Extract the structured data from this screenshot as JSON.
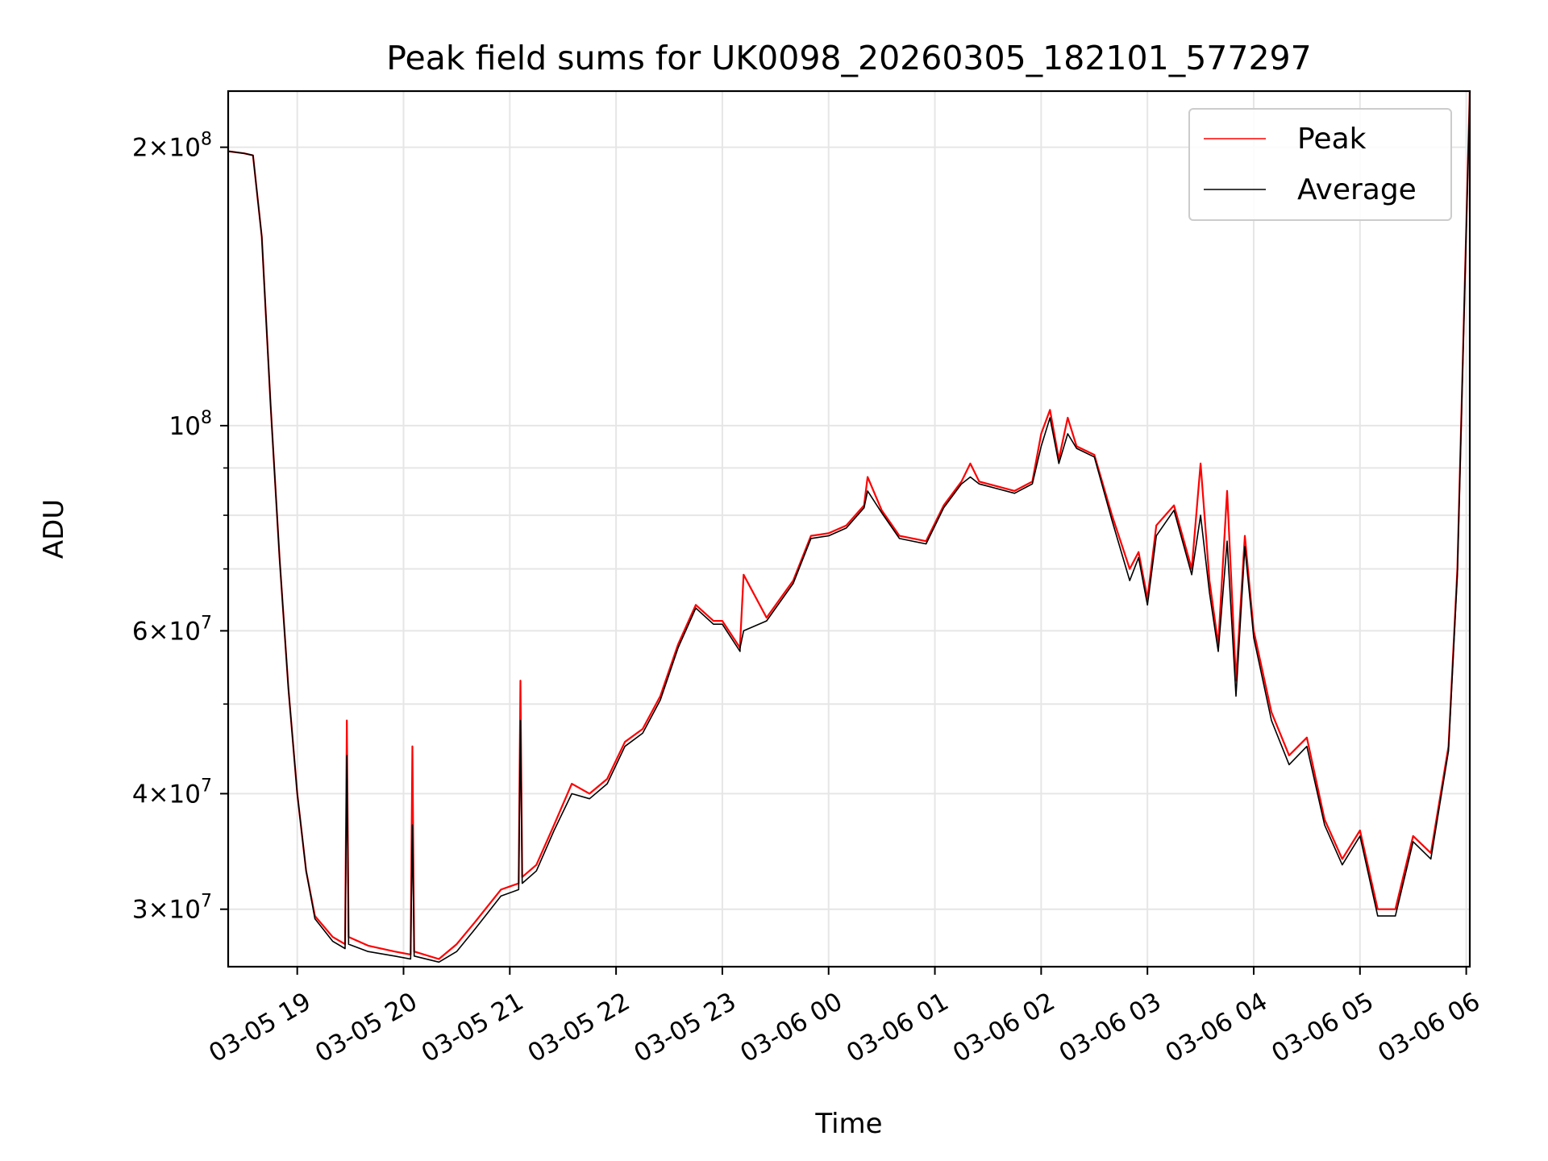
{
  "chart_data": {
    "type": "line",
    "title": "Peak field sums for UK0098_20260305_182101_577297",
    "xlabel": "Time",
    "ylabel": "ADU",
    "y_scale": "log",
    "ylim": [
      26000000,
      230000000
    ],
    "xlim": [
      "2026-03-05 18:21",
      "2026-03-06 06:02"
    ],
    "grid": true,
    "legend_position": "upper right",
    "x_ticks": [
      "03-05 19",
      "03-05 20",
      "03-05 21",
      "03-05 22",
      "03-05 23",
      "03-06 00",
      "03-06 01",
      "03-06 02",
      "03-06 03",
      "03-06 04",
      "03-06 05",
      "03-06 06"
    ],
    "y_ticks_major": [
      {
        "value": 30000000,
        "mantissa": "3",
        "exponent": "7"
      },
      {
        "value": 40000000,
        "mantissa": "4",
        "exponent": "7"
      },
      {
        "value": 60000000,
        "mantissa": "6",
        "exponent": "7"
      },
      {
        "value": 100000000,
        "mantissa": "",
        "exponent": "8"
      },
      {
        "value": 200000000,
        "mantissa": "2",
        "exponent": "8"
      }
    ],
    "y_gridlines_minor": [
      50000000,
      70000000,
      80000000,
      90000000
    ],
    "series": [
      {
        "name": "Peak",
        "color": "#ff0000",
        "x": [
          "2026-03-05 18:21",
          "2026-03-05 18:30",
          "2026-03-05 18:35",
          "2026-03-05 18:40",
          "2026-03-05 18:45",
          "2026-03-05 18:50",
          "2026-03-05 18:55",
          "2026-03-05 19:00",
          "2026-03-05 19:05",
          "2026-03-05 19:10",
          "2026-03-05 19:20",
          "2026-03-05 19:27",
          "2026-03-05 19:28",
          "2026-03-05 19:29",
          "2026-03-05 19:40",
          "2026-03-05 19:55",
          "2026-03-05 20:04",
          "2026-03-05 20:05",
          "2026-03-05 20:06",
          "2026-03-05 20:20",
          "2026-03-05 20:30",
          "2026-03-05 20:40",
          "2026-03-05 20:55",
          "2026-03-05 21:05",
          "2026-03-05 21:06",
          "2026-03-05 21:07",
          "2026-03-05 21:15",
          "2026-03-05 21:25",
          "2026-03-05 21:35",
          "2026-03-05 21:45",
          "2026-03-05 21:55",
          "2026-03-05 22:05",
          "2026-03-05 22:15",
          "2026-03-05 22:25",
          "2026-03-05 22:35",
          "2026-03-05 22:45",
          "2026-03-05 22:55",
          "2026-03-05 23:00",
          "2026-03-05 23:10",
          "2026-03-05 23:10",
          "2026-03-05 23:12",
          "2026-03-05 23:25",
          "2026-03-05 23:40",
          "2026-03-05 23:50",
          "2026-03-06 00:00",
          "2026-03-06 00:10",
          "2026-03-06 00:20",
          "2026-03-06 00:22",
          "2026-03-06 00:30",
          "2026-03-06 00:40",
          "2026-03-06 00:55",
          "2026-03-06 01:05",
          "2026-03-06 01:15",
          "2026-03-06 01:20",
          "2026-03-06 01:25",
          "2026-03-06 01:35",
          "2026-03-06 01:45",
          "2026-03-06 01:55",
          "2026-03-06 02:00",
          "2026-03-06 02:05",
          "2026-03-06 02:10",
          "2026-03-06 02:15",
          "2026-03-06 02:20",
          "2026-03-06 02:30",
          "2026-03-06 02:40",
          "2026-03-06 02:50",
          "2026-03-06 02:55",
          "2026-03-06 03:00",
          "2026-03-06 03:05",
          "2026-03-06 03:15",
          "2026-03-06 03:25",
          "2026-03-06 03:30",
          "2026-03-06 03:35",
          "2026-03-06 03:40",
          "2026-03-06 03:45",
          "2026-03-06 03:50",
          "2026-03-06 03:55",
          "2026-03-06 04:00",
          "2026-03-06 04:10",
          "2026-03-06 04:20",
          "2026-03-06 04:30",
          "2026-03-06 04:40",
          "2026-03-06 04:50",
          "2026-03-06 05:00",
          "2026-03-06 05:10",
          "2026-03-06 05:20",
          "2026-03-06 05:30",
          "2026-03-06 05:40",
          "2026-03-06 05:50",
          "2026-03-06 05:55",
          "2026-03-06 06:02"
        ],
        "y": [
          198000000,
          197000000,
          196000000,
          160000000,
          105000000,
          72000000,
          52000000,
          40000000,
          33000000,
          29500000,
          28000000,
          27500000,
          48000000,
          28000000,
          27400000,
          27000000,
          26800000,
          45000000,
          27000000,
          26500000,
          27500000,
          29000000,
          31500000,
          32000000,
          53000000,
          32500000,
          33500000,
          37000000,
          41000000,
          40000000,
          41500000,
          45500000,
          47000000,
          51000000,
          58000000,
          64000000,
          61500000,
          61500000,
          57500000,
          58000000,
          69000000,
          62000000,
          68000000,
          76000000,
          76500000,
          78000000,
          82000000,
          88000000,
          81000000,
          76000000,
          75000000,
          82000000,
          87000000,
          91000000,
          87000000,
          86000000,
          85000000,
          87000000,
          98000000,
          104000000,
          92000000,
          102000000,
          95000000,
          93000000,
          80000000,
          70000000,
          73000000,
          65000000,
          78000000,
          82000000,
          70000000,
          91000000,
          68000000,
          58000000,
          85000000,
          53000000,
          76000000,
          60000000,
          49000000,
          44000000,
          46000000,
          37500000,
          34000000,
          36500000,
          30000000,
          30000000,
          36000000,
          34500000,
          45000000,
          70000000,
          230000000
        ]
      },
      {
        "name": "Average",
        "color": "#000000",
        "x": [
          "2026-03-05 18:21",
          "2026-03-05 18:30",
          "2026-03-05 18:35",
          "2026-03-05 18:40",
          "2026-03-05 18:45",
          "2026-03-05 18:50",
          "2026-03-05 18:55",
          "2026-03-05 19:00",
          "2026-03-05 19:05",
          "2026-03-05 19:10",
          "2026-03-05 19:20",
          "2026-03-05 19:27",
          "2026-03-05 19:28",
          "2026-03-05 19:29",
          "2026-03-05 19:40",
          "2026-03-05 19:55",
          "2026-03-05 20:04",
          "2026-03-05 20:05",
          "2026-03-05 20:06",
          "2026-03-05 20:20",
          "2026-03-05 20:30",
          "2026-03-05 20:40",
          "2026-03-05 20:55",
          "2026-03-05 21:05",
          "2026-03-05 21:06",
          "2026-03-05 21:07",
          "2026-03-05 21:15",
          "2026-03-05 21:25",
          "2026-03-05 21:35",
          "2026-03-05 21:45",
          "2026-03-05 21:55",
          "2026-03-05 22:05",
          "2026-03-05 22:15",
          "2026-03-05 22:25",
          "2026-03-05 22:35",
          "2026-03-05 22:45",
          "2026-03-05 22:55",
          "2026-03-05 23:00",
          "2026-03-05 23:10",
          "2026-03-05 23:10",
          "2026-03-05 23:12",
          "2026-03-05 23:25",
          "2026-03-05 23:40",
          "2026-03-05 23:50",
          "2026-03-06 00:00",
          "2026-03-06 00:10",
          "2026-03-06 00:20",
          "2026-03-06 00:22",
          "2026-03-06 00:30",
          "2026-03-06 00:40",
          "2026-03-06 00:55",
          "2026-03-06 01:05",
          "2026-03-06 01:15",
          "2026-03-06 01:20",
          "2026-03-06 01:25",
          "2026-03-06 01:35",
          "2026-03-06 01:45",
          "2026-03-06 01:55",
          "2026-03-06 02:00",
          "2026-03-06 02:05",
          "2026-03-06 02:10",
          "2026-03-06 02:15",
          "2026-03-06 02:20",
          "2026-03-06 02:30",
          "2026-03-06 02:40",
          "2026-03-06 02:50",
          "2026-03-06 02:55",
          "2026-03-06 03:00",
          "2026-03-06 03:05",
          "2026-03-06 03:15",
          "2026-03-06 03:25",
          "2026-03-06 03:30",
          "2026-03-06 03:35",
          "2026-03-06 03:40",
          "2026-03-06 03:45",
          "2026-03-06 03:50",
          "2026-03-06 03:55",
          "2026-03-06 04:00",
          "2026-03-06 04:10",
          "2026-03-06 04:20",
          "2026-03-06 04:30",
          "2026-03-06 04:40",
          "2026-03-06 04:50",
          "2026-03-06 05:00",
          "2026-03-06 05:10",
          "2026-03-06 05:20",
          "2026-03-06 05:30",
          "2026-03-06 05:40",
          "2026-03-06 05:50",
          "2026-03-06 05:55",
          "2026-03-06 06:02"
        ],
        "y": [
          198000000,
          197000000,
          196000000,
          160000000,
          105000000,
          72000000,
          52000000,
          40000000,
          33000000,
          29300000,
          27700000,
          27200000,
          44000000,
          27500000,
          27000000,
          26700000,
          26500000,
          37000000,
          26700000,
          26300000,
          27000000,
          28500000,
          31000000,
          31500000,
          48000000,
          32000000,
          33000000,
          36500000,
          40000000,
          39500000,
          41000000,
          45000000,
          46500000,
          50500000,
          57500000,
          63500000,
          61000000,
          61000000,
          57000000,
          57500000,
          60000000,
          61500000,
          67500000,
          75500000,
          76000000,
          77500000,
          81500000,
          85000000,
          80500000,
          75500000,
          74500000,
          81500000,
          86500000,
          88000000,
          86500000,
          85500000,
          84500000,
          86500000,
          95000000,
          102000000,
          91000000,
          98000000,
          94500000,
          92500000,
          79000000,
          68000000,
          72000000,
          64000000,
          76000000,
          81000000,
          69000000,
          80000000,
          66000000,
          57000000,
          75000000,
          51000000,
          74000000,
          59000000,
          48000000,
          43000000,
          45000000,
          37000000,
          33500000,
          36000000,
          29500000,
          29500000,
          35500000,
          34000000,
          44500000,
          69000000,
          228000000
        ]
      }
    ]
  }
}
